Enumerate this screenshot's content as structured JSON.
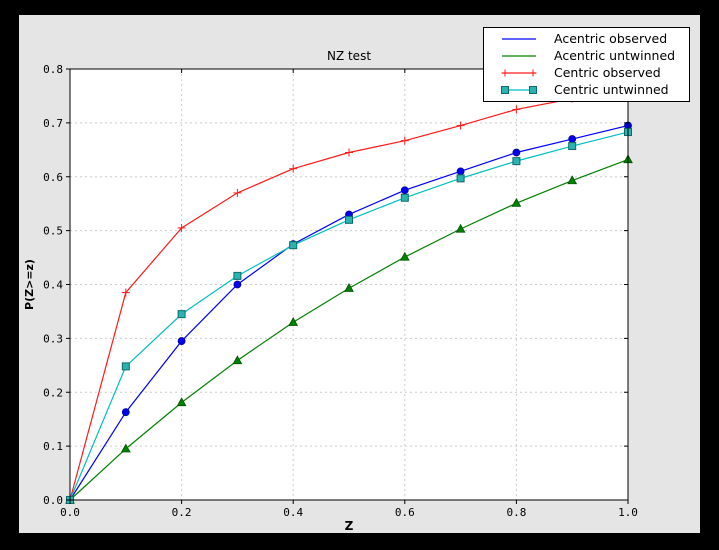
{
  "window": {
    "outer_bg": "#000000",
    "figure_bg": "#e5e5e5",
    "plot_bg": "#ffffff",
    "grid_color": "#cccccc",
    "frame_color": "#000000",
    "legend_bg": "#ffffff"
  },
  "chart_data": {
    "type": "line",
    "title": "NZ test",
    "xlabel": "Z",
    "ylabel": "P(Z>=z)",
    "xlim": [
      0.0,
      1.0
    ],
    "ylim": [
      0.0,
      0.8
    ],
    "grid": true,
    "legend_position": "upper right",
    "x_tick_values": [
      0.0,
      0.2,
      0.4,
      0.6,
      0.8,
      1.0
    ],
    "x_tick_labels": [
      "0.0",
      "0.2",
      "0.4",
      "0.6",
      "0.8",
      "1.0"
    ],
    "y_tick_values": [
      0.0,
      0.1,
      0.2,
      0.3,
      0.4,
      0.5,
      0.6,
      0.7,
      0.8
    ],
    "y_tick_labels": [
      "0.0",
      "0.1",
      "0.2",
      "0.3",
      "0.4",
      "0.5",
      "0.6",
      "0.7",
      "0.8"
    ],
    "x": [
      0.0,
      0.1,
      0.2,
      0.3,
      0.4,
      0.5,
      0.6,
      0.7,
      0.8,
      0.9,
      1.0
    ],
    "series": [
      {
        "name": "Acentric observed",
        "color": "#0000ff",
        "marker": "circle",
        "marker_fill": "#0000ee",
        "marker_edge": "#000099",
        "values": [
          0.0,
          0.163,
          0.295,
          0.4,
          0.475,
          0.53,
          0.575,
          0.61,
          0.645,
          0.67,
          0.695
        ]
      },
      {
        "name": "Acentric untwinned",
        "color": "#008000",
        "marker": "triangle",
        "marker_fill": "#008000",
        "marker_edge": "#005500",
        "values": [
          0.0,
          0.095,
          0.181,
          0.259,
          0.33,
          0.393,
          0.451,
          0.503,
          0.551,
          0.593,
          0.632
        ]
      },
      {
        "name": "Centric observed",
        "color": "#ff1a1a",
        "marker": "plus",
        "marker_fill": "#ff1a1a",
        "marker_edge": "#ff1a1a",
        "values": [
          0.0,
          0.385,
          0.505,
          0.57,
          0.615,
          0.645,
          0.667,
          0.695,
          0.725,
          0.745,
          0.77
        ]
      },
      {
        "name": "Centric untwinned",
        "color": "#00bfbf",
        "marker": "square",
        "marker_fill": "#2ab3b0",
        "marker_edge": "#0d6b6b",
        "values": [
          0.0,
          0.248,
          0.345,
          0.416,
          0.473,
          0.52,
          0.561,
          0.597,
          0.629,
          0.657,
          0.683
        ]
      }
    ]
  }
}
